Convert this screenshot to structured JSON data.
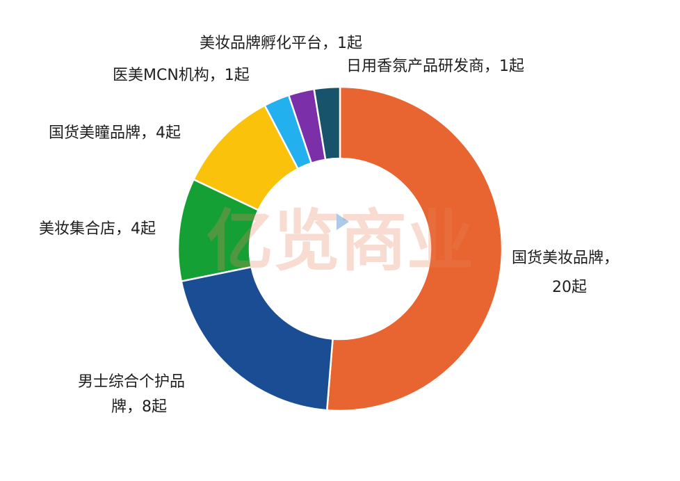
{
  "chart_data": {
    "type": "pie",
    "donut": true,
    "title": "",
    "slices": [
      {
        "label": "国货美妆品牌",
        "label_lines": [
          "国货美妆品牌，",
          "20起"
        ],
        "value": 20,
        "color": "#e86430"
      },
      {
        "label": "男士综合个护品牌",
        "label_lines": [
          "男士综合个护品",
          "牌，8起"
        ],
        "value": 8,
        "color": "#1a4d94"
      },
      {
        "label": "美妆集合店",
        "label_lines": [
          "美妆集合店，4起"
        ],
        "value": 4,
        "color": "#14a035"
      },
      {
        "label": "国货美瞳品牌",
        "label_lines": [
          "国货美瞳品牌，4起"
        ],
        "value": 4,
        "color": "#fbc20b"
      },
      {
        "label": "医美MCN机构",
        "label_lines": [
          "医美MCN机构，1起"
        ],
        "value": 1,
        "color": "#22b0ef"
      },
      {
        "label": "美妆品牌孵化平台",
        "label_lines": [
          "美妆品牌孵化平台，1起"
        ],
        "value": 1,
        "color": "#7b2fa8"
      },
      {
        "label": "日用香氛产品研发商",
        "label_lines": [
          "日用香氛产品研发商，1起"
        ],
        "value": 1,
        "color": "#17536b"
      }
    ],
    "legend": "none"
  },
  "watermark": {
    "text": "亿览商业",
    "icon": "play-icon"
  }
}
